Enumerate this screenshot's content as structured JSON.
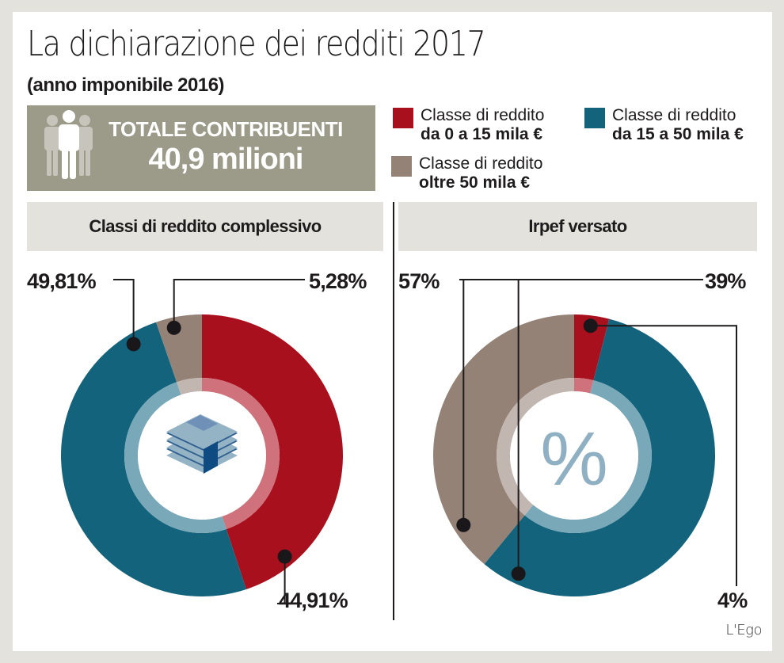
{
  "header": {
    "title": "La dichiarazione dei redditi 2017",
    "subtitle": "(anno imponibile 2016)"
  },
  "summary": {
    "icon": "people-group-icon",
    "label": "TOTALE CONTRIBUENTI",
    "value": "40,9 milioni"
  },
  "legend": [
    {
      "line1": "Classe di reddito",
      "line2": "da 0 a 15 mila €",
      "color": "#a9101e"
    },
    {
      "line1": "Classe di reddito",
      "line2": "da 15 a 50 mila €",
      "color": "#13637c"
    },
    {
      "line1": "Classe di reddito",
      "line2": "oltre 50 mila €",
      "color": "#958277"
    }
  ],
  "colors": {
    "low": "#a9101e",
    "mid": "#13637c",
    "high": "#958277",
    "low_inner": "#cf727b",
    "mid_inner": "#79a8b8",
    "high_inner": "#c2b6b0"
  },
  "chart_data": [
    {
      "type": "pie",
      "title": "Classi di reddito complessivo",
      "center_icon": "money-stack-icon",
      "categories": [
        "da 0 a 15 mila €",
        "da 15 a 50 mila €",
        "oltre 50 mila €"
      ],
      "values": [
        44.91,
        49.81,
        5.28
      ],
      "labels": [
        "44,91%",
        "49,81%",
        "5,28%"
      ]
    },
    {
      "type": "pie",
      "title": "Irpef versato",
      "center_icon": "percent-icon",
      "center_text": "%",
      "categories": [
        "da 0 a 15 mila €",
        "da 15 a 50 mila €",
        "oltre 50 mila €"
      ],
      "values": [
        4,
        57,
        39
      ],
      "labels": [
        "4%",
        "57%",
        "39%"
      ]
    }
  ],
  "credit": "L'Ego"
}
